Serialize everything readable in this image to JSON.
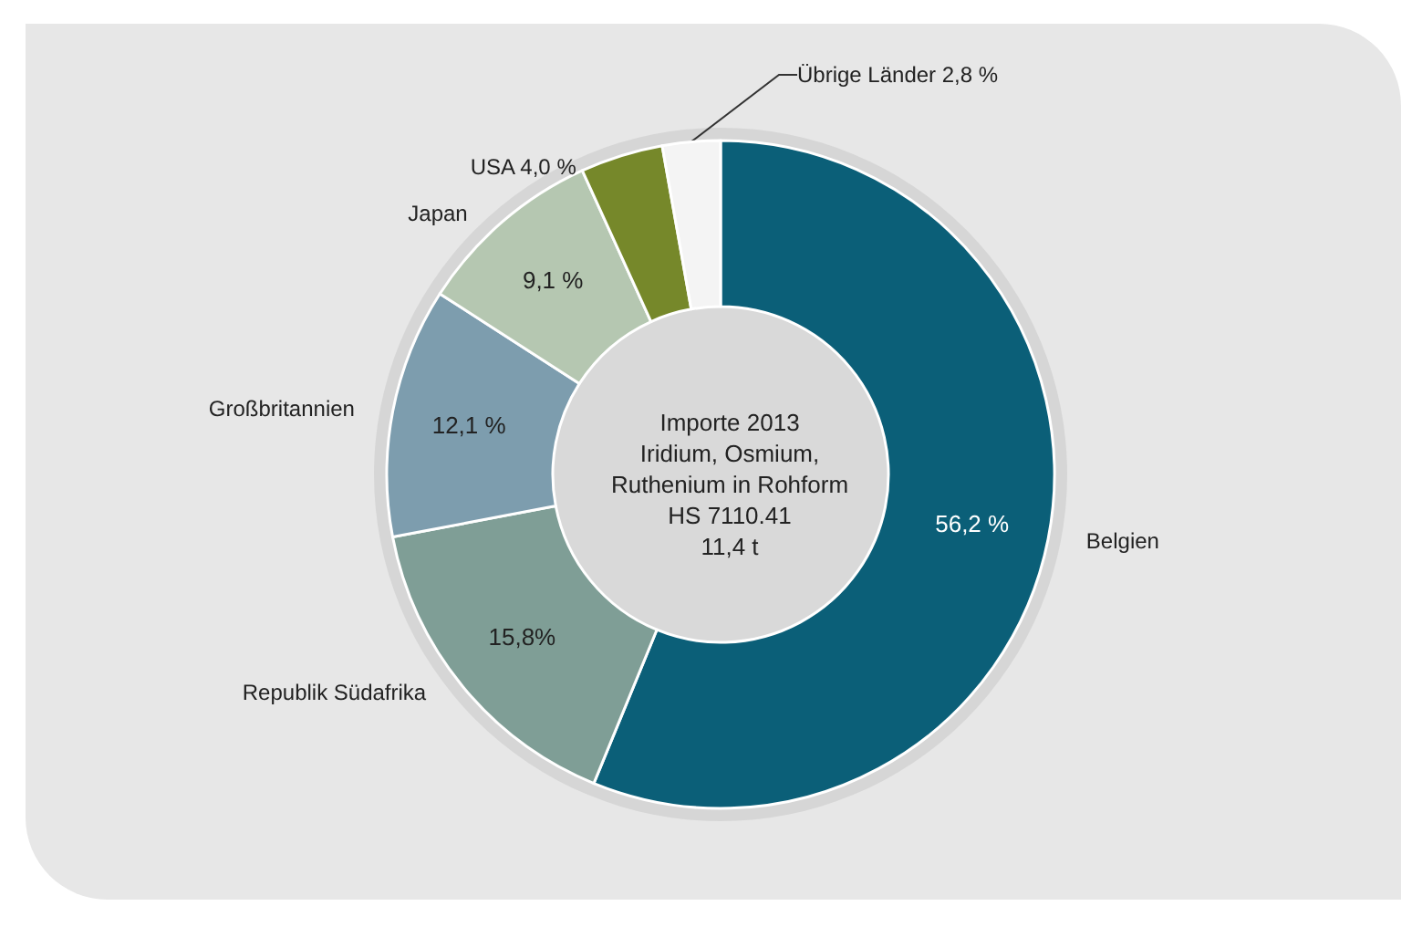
{
  "chart_data": {
    "type": "donut",
    "title": "Importe 2013\nIridium, Osmium,\nRuthenium in Rohform\nHS 7110.41\n11,4 t",
    "categories": [
      "Belgien",
      "Republik Südafrika",
      "Großbritannien",
      "Japan",
      "USA",
      "Übrige Länder"
    ],
    "values": [
      56.2,
      15.8,
      12.1,
      9.1,
      4.0,
      2.8
    ],
    "value_labels": [
      "56,2 %",
      "15,8%",
      "12,1 %",
      "9,1 %",
      "4,0 %",
      "2,8 %"
    ],
    "colors": [
      "#0b5f78",
      "#7f9e96",
      "#7d9dae",
      "#b5c7b1",
      "#76882a",
      "#f4f4f4"
    ],
    "legend": false
  }
}
